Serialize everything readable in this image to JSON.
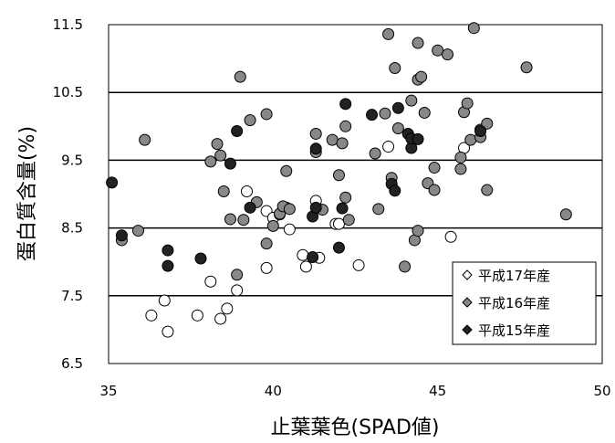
{
  "chart_data": {
    "type": "scatter",
    "title": "",
    "xlabel": "止葉葉色(SPAD値)",
    "ylabel": "蛋白質含量(%)",
    "xlim": [
      35,
      50
    ],
    "ylim": [
      6.5,
      11.5
    ],
    "x_ticks": [
      "35",
      "40",
      "45",
      "50"
    ],
    "y_ticks": [
      "6.5",
      "7.5",
      "8.5",
      "9.5",
      "10.5",
      "11.5"
    ],
    "gridlines_y": [
      7.5,
      8.5,
      9.5,
      10.5
    ],
    "legend_position": "bottom-right",
    "series": [
      {
        "name": "平成17年産",
        "color": "#ffffff",
        "marker": "diamond-open",
        "points": [
          [
            36.3,
            7.21
          ],
          [
            36.7,
            7.43
          ],
          [
            36.8,
            6.97
          ],
          [
            37.7,
            7.21
          ],
          [
            38.1,
            7.71
          ],
          [
            38.4,
            7.16
          ],
          [
            38.6,
            7.31
          ],
          [
            38.9,
            7.58
          ],
          [
            39.2,
            9.04
          ],
          [
            39.8,
            7.91
          ],
          [
            39.8,
            8.75
          ],
          [
            40.0,
            8.65
          ],
          [
            40.2,
            8.7
          ],
          [
            40.4,
            8.8
          ],
          [
            40.5,
            8.48
          ],
          [
            40.9,
            8.1
          ],
          [
            41.0,
            7.93
          ],
          [
            41.3,
            8.9
          ],
          [
            41.4,
            8.06
          ],
          [
            41.9,
            8.56
          ],
          [
            42.0,
            8.56
          ],
          [
            42.6,
            7.95
          ],
          [
            43.5,
            9.7
          ],
          [
            45.4,
            8.37
          ],
          [
            45.8,
            9.68
          ]
        ]
      },
      {
        "name": "平成16年産",
        "color": "#888888",
        "marker": "diamond-grey",
        "points": [
          [
            35.4,
            8.32
          ],
          [
            35.9,
            8.46
          ],
          [
            36.1,
            9.8
          ],
          [
            38.1,
            9.48
          ],
          [
            38.3,
            9.74
          ],
          [
            38.4,
            9.57
          ],
          [
            38.5,
            9.04
          ],
          [
            38.7,
            8.63
          ],
          [
            38.9,
            7.81
          ],
          [
            39.0,
            10.73
          ],
          [
            39.1,
            8.62
          ],
          [
            39.3,
            10.09
          ],
          [
            39.5,
            8.88
          ],
          [
            39.8,
            10.18
          ],
          [
            39.8,
            8.27
          ],
          [
            40.0,
            8.53
          ],
          [
            40.2,
            8.71
          ],
          [
            40.3,
            8.82
          ],
          [
            40.4,
            9.34
          ],
          [
            40.5,
            8.78
          ],
          [
            41.3,
            9.89
          ],
          [
            41.3,
            9.62
          ],
          [
            41.5,
            8.77
          ],
          [
            41.8,
            9.8
          ],
          [
            42.0,
            9.28
          ],
          [
            42.1,
            9.75
          ],
          [
            42.2,
            10.0
          ],
          [
            42.2,
            8.95
          ],
          [
            42.3,
            8.62
          ],
          [
            43.1,
            9.6
          ],
          [
            43.2,
            8.78
          ],
          [
            43.4,
            10.19
          ],
          [
            43.5,
            11.36
          ],
          [
            43.6,
            9.24
          ],
          [
            43.7,
            10.86
          ],
          [
            43.8,
            9.97
          ],
          [
            44.0,
            7.93
          ],
          [
            44.2,
            10.38
          ],
          [
            44.3,
            8.32
          ],
          [
            44.4,
            8.46
          ],
          [
            44.4,
            11.23
          ],
          [
            44.4,
            10.69
          ],
          [
            44.5,
            10.73
          ],
          [
            44.6,
            10.2
          ],
          [
            44.7,
            9.16
          ],
          [
            44.9,
            9.06
          ],
          [
            44.9,
            9.39
          ],
          [
            45.0,
            11.12
          ],
          [
            45.3,
            11.06
          ],
          [
            45.7,
            9.37
          ],
          [
            45.7,
            9.54
          ],
          [
            45.8,
            10.21
          ],
          [
            45.9,
            10.34
          ],
          [
            46.0,
            9.8
          ],
          [
            46.1,
            11.45
          ],
          [
            46.3,
            9.95
          ],
          [
            46.3,
            9.84
          ],
          [
            46.5,
            10.04
          ],
          [
            46.5,
            9.06
          ],
          [
            47.7,
            10.87
          ],
          [
            48.9,
            8.7
          ]
        ]
      },
      {
        "name": "平成15年産",
        "color": "#222222",
        "marker": "diamond-filled",
        "points": [
          [
            35.1,
            9.17
          ],
          [
            35.4,
            8.39
          ],
          [
            36.8,
            7.94
          ],
          [
            36.8,
            8.17
          ],
          [
            37.8,
            8.05
          ],
          [
            38.7,
            9.45
          ],
          [
            38.9,
            9.93
          ],
          [
            39.3,
            8.8
          ],
          [
            41.2,
            8.67
          ],
          [
            41.2,
            8.07
          ],
          [
            41.3,
            8.8
          ],
          [
            41.3,
            9.67
          ],
          [
            42.0,
            8.21
          ],
          [
            42.1,
            8.79
          ],
          [
            42.2,
            10.33
          ],
          [
            43.0,
            10.17
          ],
          [
            43.6,
            9.15
          ],
          [
            43.7,
            9.05
          ],
          [
            43.8,
            10.27
          ],
          [
            44.1,
            9.89
          ],
          [
            44.2,
            9.68
          ],
          [
            44.2,
            9.82
          ],
          [
            44.4,
            9.81
          ],
          [
            46.3,
            9.93
          ]
        ]
      }
    ]
  }
}
